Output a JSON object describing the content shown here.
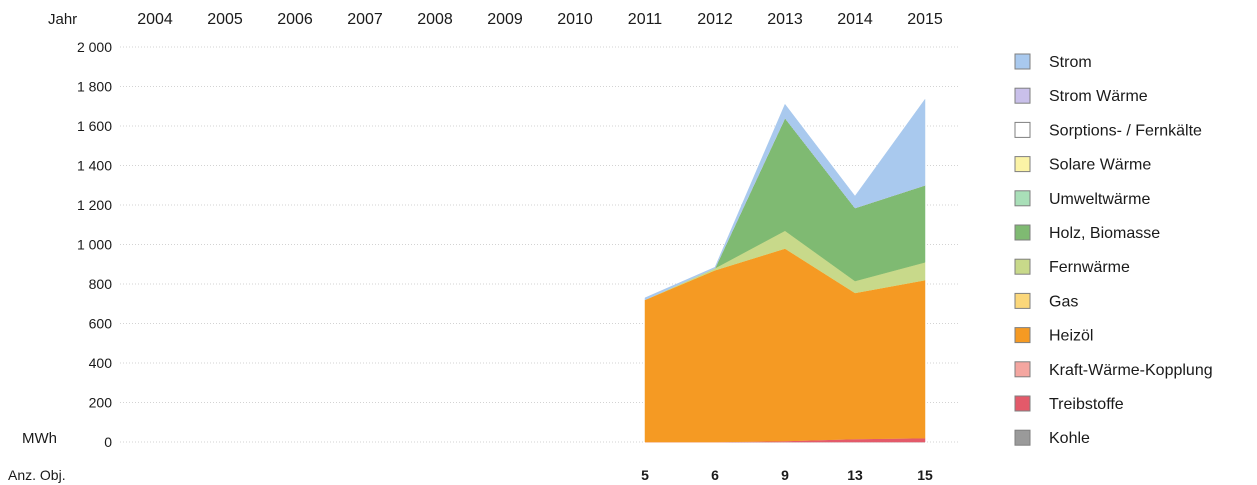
{
  "chart_data": {
    "type": "area",
    "stacked": true,
    "x_axis_label": "Jahr",
    "y_axis_label": "MWh",
    "x": [
      "2004",
      "2005",
      "2006",
      "2007",
      "2008",
      "2009",
      "2010",
      "2011",
      "2012",
      "2013",
      "2014",
      "2015"
    ],
    "ylim": [
      0,
      2000
    ],
    "y_ticks": [
      "2 000",
      "1 800",
      "1 600",
      "1 400",
      "1 200",
      "1 000",
      "800",
      "600",
      "400",
      "200",
      "0"
    ],
    "grid": true,
    "legend_position": "right",
    "series": [
      {
        "name": "Kohle",
        "color": "#9a9a9a",
        "values": [
          null,
          null,
          null,
          null,
          null,
          null,
          null,
          0,
          0,
          0,
          0,
          0
        ]
      },
      {
        "name": "Treibstoffe",
        "color": "#e35a6a",
        "values": [
          null,
          null,
          null,
          null,
          null,
          null,
          null,
          0,
          0,
          5,
          15,
          20
        ]
      },
      {
        "name": "Kraft-Wärme-Kopplung",
        "color": "#f4a6a0",
        "values": [
          null,
          null,
          null,
          null,
          null,
          null,
          null,
          0,
          0,
          0,
          0,
          0
        ]
      },
      {
        "name": "Heizöl",
        "color": "#f59a23",
        "values": [
          null,
          null,
          null,
          null,
          null,
          null,
          null,
          720,
          870,
          975,
          740,
          800
        ]
      },
      {
        "name": "Gas",
        "color": "#fbd77a",
        "values": [
          null,
          null,
          null,
          null,
          null,
          null,
          null,
          0,
          0,
          0,
          0,
          0
        ]
      },
      {
        "name": "Fernwärme",
        "color": "#c8d98a",
        "values": [
          null,
          null,
          null,
          null,
          null,
          null,
          null,
          0,
          10,
          90,
          60,
          90
        ]
      },
      {
        "name": "Holz, Biomasse",
        "color": "#7fba72",
        "values": [
          null,
          null,
          null,
          null,
          null,
          null,
          null,
          0,
          0,
          570,
          370,
          390
        ]
      },
      {
        "name": "Umweltwärme",
        "color": "#a9dfb8",
        "values": [
          null,
          null,
          null,
          null,
          null,
          null,
          null,
          0,
          0,
          0,
          0,
          0
        ]
      },
      {
        "name": "Solare Wärme",
        "color": "#fbf3a6",
        "values": [
          null,
          null,
          null,
          null,
          null,
          null,
          null,
          0,
          0,
          0,
          0,
          0
        ]
      },
      {
        "name": "Sorptions- / Fernkälte",
        "color": "#ffffff",
        "values": [
          null,
          null,
          null,
          null,
          null,
          null,
          null,
          0,
          0,
          0,
          0,
          0
        ]
      },
      {
        "name": "Strom Wärme",
        "color": "#c9c0ea",
        "values": [
          null,
          null,
          null,
          null,
          null,
          null,
          null,
          0,
          0,
          0,
          0,
          0
        ]
      },
      {
        "name": "Strom",
        "color": "#a9c9ee",
        "values": [
          null,
          null,
          null,
          null,
          null,
          null,
          null,
          10,
          5,
          70,
          60,
          435
        ]
      }
    ],
    "legend_order": [
      "Strom",
      "Strom Wärme",
      "Sorptions- / Fernkälte",
      "Solare Wärme",
      "Umweltwärme",
      "Holz, Biomasse",
      "Fernwärme",
      "Gas",
      "Heizöl",
      "Kraft-Wärme-Kopplung",
      "Treibstoffe",
      "Kohle"
    ],
    "objects_label": "Anz. Obj.",
    "objects_count": [
      "",
      "",
      "",
      "",
      "",
      "",
      "",
      "5",
      "6",
      "9",
      "13",
      "15"
    ]
  }
}
